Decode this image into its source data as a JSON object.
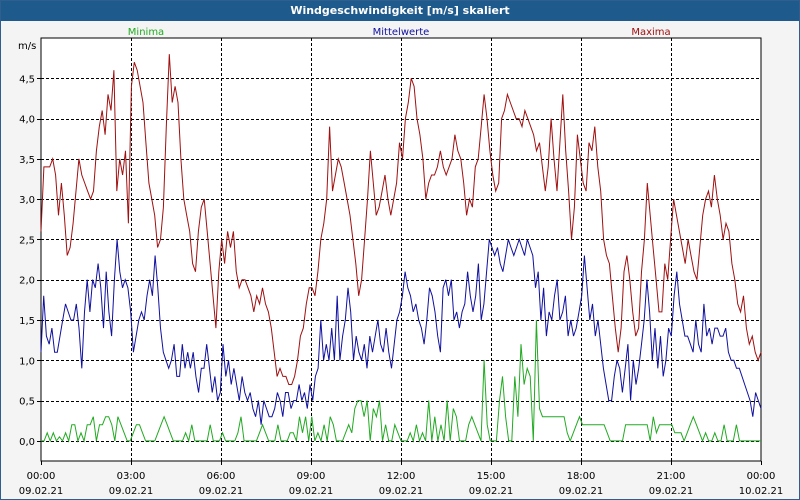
{
  "chart_data": {
    "type": "line",
    "title": "Windgeschwindigkeit [m/s] skaliert",
    "ylabel": "m/s",
    "xlabel": "",
    "ylim": [
      -0.25,
      5.0
    ],
    "xlim": [
      0,
      24
    ],
    "grid": true,
    "legend_placement": "top",
    "y_ticks": [
      "0,0",
      "0,5",
      "1,0",
      "1,5",
      "2,0",
      "2,5",
      "3,0",
      "3,5",
      "4,0",
      "4,5"
    ],
    "y_tick_values": [
      0,
      0.5,
      1.0,
      1.5,
      2.0,
      2.5,
      3.0,
      3.5,
      4.0,
      4.5
    ],
    "x_ticks": [
      {
        "time": "00:00",
        "date": "09.02.21"
      },
      {
        "time": "03:00",
        "date": "09.02.21"
      },
      {
        "time": "06:00",
        "date": "09.02.21"
      },
      {
        "time": "09:00",
        "date": "09.02.21"
      },
      {
        "time": "12:00",
        "date": "09.02.21"
      },
      {
        "time": "15:00",
        "date": "09.02.21"
      },
      {
        "time": "18:00",
        "date": "09.02.21"
      },
      {
        "time": "21:00",
        "date": "09.02.21"
      },
      {
        "time": "00:00",
        "date": "10.02.21"
      }
    ],
    "series": [
      {
        "name": "Minima",
        "color": "#22aa22",
        "values": [
          0.0,
          0.0,
          0.1,
          0.0,
          0.1,
          0.0,
          0.05,
          0.0,
          0.1,
          0.0,
          0.2,
          0.2,
          0.0,
          0.1,
          0.0,
          0.2,
          0.2,
          0.3,
          0.0,
          0.2,
          0.2,
          0.3,
          0.3,
          0.2,
          0.0,
          0.3,
          0.2,
          0.1,
          0.0,
          0.0,
          0.1,
          0.2,
          0.2,
          0.1,
          0.0,
          0.0,
          0.0,
          0.0,
          0.1,
          0.2,
          0.3,
          0.2,
          0.1,
          0.0,
          0.0,
          0.0,
          0.0,
          0.1,
          0.0,
          0.2,
          0.0,
          0.0,
          0.0,
          0.0,
          0.0,
          0.2,
          0.0,
          0.0,
          0.0,
          0.1,
          0.0,
          0.0,
          0.0,
          0.0,
          0.1,
          0.3,
          0.0,
          0.0,
          0.0,
          0.0,
          0.0,
          0.1,
          0.2,
          0.1,
          0.0,
          0.0,
          0.0,
          0.2,
          0.0,
          0.0,
          0.0,
          0.1,
          0.1,
          0.0,
          0.3,
          0.1,
          0.3,
          0.0,
          0.3,
          0.0,
          0.1,
          0.0,
          0.2,
          0.0,
          0.3,
          0.2,
          0.0,
          0.0,
          0.0,
          0.1,
          0.2,
          0.1,
          0.4,
          0.5,
          0.5,
          0.3,
          0.5,
          0.0,
          0.4,
          0.3,
          0.5,
          0.0,
          0.2,
          0.0,
          0.0,
          0.2,
          0.1,
          0.0,
          0.0,
          0.0,
          0.1,
          0.0,
          0.2,
          0.0,
          0.1,
          0.0,
          0.5,
          0.0,
          0.3,
          0.0,
          0.2,
          0.0,
          0.5,
          0.0,
          0.4,
          0.3,
          0.0,
          0.0,
          0.0,
          0.2,
          0.3,
          0.2,
          0.1,
          0.0,
          1.0,
          0.2,
          0.0,
          0.0,
          0.0,
          0.5,
          0.8,
          0.3,
          0.0,
          0.0,
          0.8,
          0.3,
          1.2,
          0.7,
          0.9,
          0.8,
          0.0,
          1.5,
          0.4,
          0.3,
          0.3,
          0.3,
          0.3,
          0.3,
          0.3,
          0.3,
          0.3,
          0.1,
          0.0,
          0.1,
          0.2,
          0.3,
          0.2,
          0.2,
          0.2,
          0.2,
          0.2,
          0.2,
          0.2,
          0.2,
          0.1,
          0.0,
          0.0,
          0.0,
          0.0,
          0.0,
          0.2,
          0.2,
          0.2,
          0.2,
          0.2,
          0.2,
          0.2,
          0.2,
          0.0,
          0.3,
          0.1,
          0.2,
          0.2,
          0.2,
          0.2,
          0.2,
          0.1,
          0.1,
          0.1,
          0.0,
          0.1,
          0.2,
          0.3,
          0.2,
          0.1,
          0.0,
          0.1,
          0.0,
          0.0,
          0.1,
          0.0,
          0.0,
          0.2,
          0.0,
          0.0,
          0.0,
          0.2,
          0.0,
          0.0,
          0.0,
          0.0,
          0.0,
          0.0,
          0.0,
          0.0
        ]
      },
      {
        "name": "Mittelwerte",
        "color": "#1010a0",
        "values": [
          1.1,
          1.8,
          1.3,
          1.2,
          1.4,
          1.1,
          1.1,
          1.3,
          1.5,
          1.7,
          1.6,
          1.5,
          1.5,
          1.7,
          1.4,
          0.9,
          1.6,
          2.0,
          1.6,
          2.0,
          1.9,
          2.2,
          1.9,
          1.4,
          2.1,
          1.6,
          1.3,
          2.0,
          2.5,
          2.1,
          1.9,
          2.0,
          1.9,
          1.6,
          1.1,
          1.3,
          1.5,
          1.6,
          1.5,
          1.8,
          2.0,
          1.8,
          2.3,
          1.9,
          1.4,
          1.1,
          1.0,
          0.9,
          1.0,
          1.2,
          0.8,
          0.8,
          1.2,
          0.9,
          1.1,
          0.9,
          1.1,
          0.8,
          0.6,
          0.9,
          0.9,
          1.2,
          0.9,
          0.6,
          0.8,
          0.5,
          0.6,
          1.2,
          0.8,
          1.0,
          0.7,
          0.9,
          0.7,
          0.5,
          0.8,
          0.6,
          0.5,
          0.6,
          0.4,
          0.3,
          0.5,
          0.2,
          0.5,
          0.4,
          0.3,
          0.3,
          0.4,
          0.6,
          0.5,
          0.3,
          0.6,
          0.6,
          0.4,
          0.5,
          0.5,
          0.7,
          0.5,
          0.6,
          0.4,
          0.7,
          0.5,
          0.8,
          0.9,
          1.5,
          1.0,
          1.2,
          1.0,
          1.4,
          1.0,
          1.8,
          1.0,
          1.3,
          1.5,
          1.9,
          1.6,
          1.0,
          1.3,
          1.1,
          1.0,
          1.2,
          0.9,
          1.3,
          1.1,
          1.3,
          1.5,
          1.2,
          1.1,
          1.4,
          1.1,
          0.9,
          1.2,
          1.5,
          1.6,
          1.8,
          2.1,
          1.9,
          1.8,
          1.6,
          1.7,
          1.5,
          1.4,
          1.2,
          1.5,
          1.9,
          1.8,
          1.6,
          1.3,
          1.1,
          1.9,
          2.0,
          1.8,
          2.0,
          1.5,
          1.6,
          1.4,
          1.6,
          1.7,
          2.1,
          1.8,
          1.6,
          1.8,
          2.2,
          1.5,
          1.7,
          2.1,
          2.5,
          2.4,
          2.3,
          2.4,
          2.2,
          2.1,
          2.3,
          2.5,
          2.4,
          2.3,
          2.4,
          2.5,
          2.4,
          2.3,
          2.5,
          2.4,
          2.3,
          1.9,
          2.1,
          1.5,
          1.9,
          1.3,
          1.6,
          1.5,
          1.8,
          2.0,
          1.5,
          1.6,
          1.8,
          1.3,
          1.5,
          1.3,
          1.4,
          1.6,
          1.8,
          2.3,
          1.9,
          1.5,
          1.7,
          1.3,
          1.5,
          1.2,
          0.9,
          0.7,
          0.5,
          0.5,
          0.8,
          1.0,
          0.9,
          0.6,
          0.9,
          1.2,
          0.5,
          1.0,
          0.7,
          0.9,
          1.2,
          1.5,
          2.0,
          1.6,
          1.0,
          1.4,
          0.9,
          1.3,
          0.8,
          1.0,
          1.4,
          1.3,
          1.8,
          2.1,
          1.7,
          1.5,
          1.3,
          1.3,
          1.2,
          1.1,
          1.5,
          1.2,
          1.1,
          1.7,
          1.3,
          1.4,
          1.2,
          1.4,
          1.4,
          1.3,
          1.3,
          1.4,
          1.1,
          1.0,
          1.0,
          0.9,
          0.9,
          0.8,
          0.7,
          0.6,
          0.5,
          0.3,
          0.6,
          0.5,
          0.4
        ]
      },
      {
        "name": "Maxima",
        "color": "#a01010",
        "values": [
          2.6,
          3.4,
          3.4,
          3.4,
          3.5,
          3.3,
          2.8,
          3.2,
          2.8,
          2.3,
          2.4,
          2.7,
          3.1,
          3.5,
          3.3,
          3.2,
          3.1,
          3.0,
          3.1,
          3.6,
          3.9,
          4.1,
          3.8,
          4.3,
          4.1,
          4.6,
          3.1,
          3.5,
          3.3,
          3.6,
          2.7,
          4.4,
          4.7,
          4.6,
          4.4,
          4.2,
          3.7,
          3.2,
          3.0,
          2.8,
          2.4,
          2.5,
          2.9,
          3.9,
          4.8,
          4.2,
          4.4,
          4.2,
          3.5,
          3.0,
          2.8,
          2.6,
          2.2,
          2.1,
          2.6,
          2.9,
          3.0,
          2.6,
          2.2,
          1.8,
          1.4,
          2.1,
          2.5,
          2.2,
          2.6,
          2.4,
          2.6,
          2.1,
          1.9,
          2.0,
          2.0,
          1.9,
          1.8,
          1.6,
          1.8,
          1.7,
          1.9,
          1.7,
          1.6,
          1.4,
          1.1,
          0.8,
          0.9,
          0.8,
          0.8,
          0.7,
          0.7,
          0.8,
          1.0,
          1.3,
          1.4,
          1.7,
          1.9,
          1.9,
          1.8,
          2.1,
          2.5,
          2.7,
          3.0,
          3.9,
          3.1,
          3.3,
          3.5,
          3.4,
          3.2,
          3.0,
          2.8,
          2.5,
          2.2,
          1.8,
          2.0,
          2.5,
          3.0,
          3.6,
          3.2,
          2.8,
          2.9,
          3.1,
          3.3,
          3.0,
          2.8,
          3.0,
          3.2,
          3.7,
          3.5,
          4.0,
          4.2,
          4.5,
          4.4,
          4.0,
          3.8,
          3.5,
          3.0,
          3.2,
          3.3,
          3.3,
          3.4,
          3.6,
          3.4,
          3.3,
          3.4,
          3.5,
          3.8,
          3.6,
          3.5,
          3.2,
          2.8,
          3.0,
          2.9,
          3.4,
          3.5,
          3.9,
          4.3,
          4.0,
          3.6,
          3.3,
          3.1,
          3.2,
          4.0,
          4.1,
          4.3,
          4.2,
          4.1,
          4.0,
          4.0,
          3.9,
          4.1,
          4.0,
          3.9,
          3.8,
          3.6,
          3.7,
          3.4,
          3.1,
          3.4,
          4.0,
          3.5,
          3.1,
          3.7,
          4.3,
          3.6,
          3.1,
          2.5,
          2.9,
          3.8,
          3.5,
          3.2,
          3.1,
          3.7,
          3.6,
          3.9,
          3.4,
          3.1,
          2.5,
          2.3,
          2.2,
          1.8,
          1.4,
          1.1,
          1.4,
          2.1,
          2.3,
          2.0,
          1.6,
          1.3,
          1.4,
          2.1,
          2.5,
          3.2,
          2.8,
          2.4,
          2.0,
          1.6,
          1.6,
          2.2,
          2.0,
          2.5,
          3.0,
          2.8,
          2.6,
          2.4,
          2.2,
          2.5,
          2.3,
          2.1,
          2.0,
          2.4,
          2.8,
          3.0,
          3.1,
          2.9,
          3.3,
          3.0,
          2.8,
          2.5,
          2.7,
          2.6,
          2.2,
          2.0,
          1.7,
          1.6,
          1.8,
          1.4,
          1.2,
          1.3,
          1.1,
          1.0,
          1.1
        ]
      }
    ]
  }
}
